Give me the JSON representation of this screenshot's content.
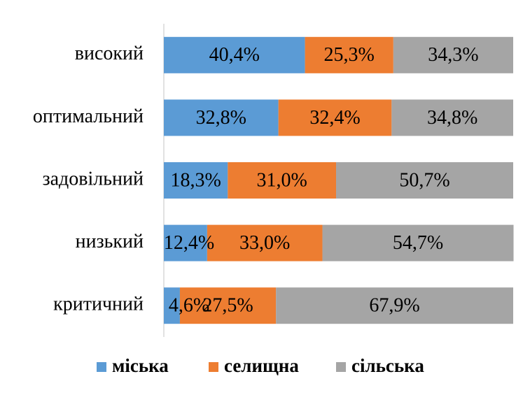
{
  "chart_data": {
    "type": "stacked-bar-horizontal",
    "categories": [
      "високий",
      "оптимальний",
      "задовільний",
      "низький",
      "критичний"
    ],
    "series": [
      {
        "name": "міська",
        "color": "#5b9bd5",
        "values": [
          40.4,
          32.8,
          18.3,
          12.4,
          4.6
        ],
        "value_labels": [
          "40,4%",
          "32,8%",
          "18,3%",
          "12,4%",
          "4,6%"
        ]
      },
      {
        "name": "селищна",
        "color": "#ed7d31",
        "values": [
          25.3,
          32.4,
          31.0,
          33.0,
          27.5
        ],
        "value_labels": [
          "25,3%",
          "32,4%",
          "31,0%",
          "33,0%",
          "27,5%"
        ]
      },
      {
        "name": "сільська",
        "color": "#a5a5a5",
        "values": [
          34.3,
          34.8,
          50.7,
          54.7,
          67.9
        ],
        "value_labels": [
          "34,3%",
          "34,8%",
          "50,7%",
          "54,7%",
          "67,9%"
        ]
      }
    ],
    "xlim": [
      0,
      100
    ],
    "legend": "bottom"
  }
}
